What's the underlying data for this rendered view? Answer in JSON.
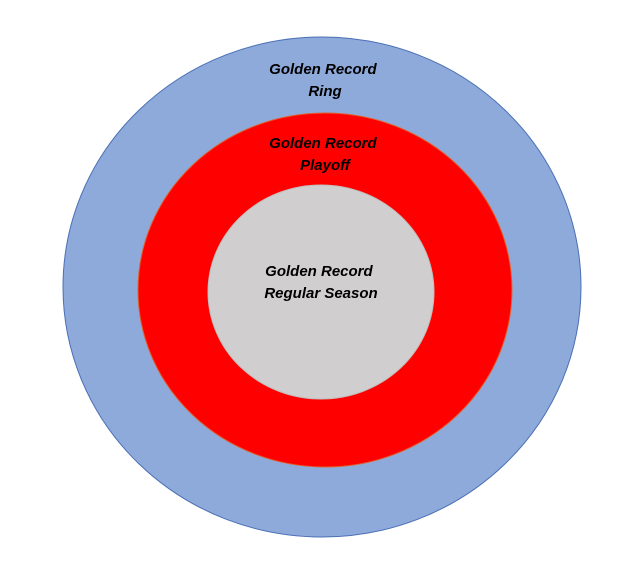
{
  "diagram": {
    "outer": {
      "lines": [
        "Golden Record",
        "Ring"
      ],
      "fill": "#8eaadb",
      "stroke": "#4a6fb5"
    },
    "middle": {
      "lines": [
        "Golden Record",
        "Playoff"
      ],
      "fill": "#ff0000",
      "stroke": "#e06030"
    },
    "inner": {
      "lines": [
        "Golden Record",
        "Regular Season"
      ],
      "fill": "#d0cece",
      "stroke": "#c0bdbd"
    }
  }
}
